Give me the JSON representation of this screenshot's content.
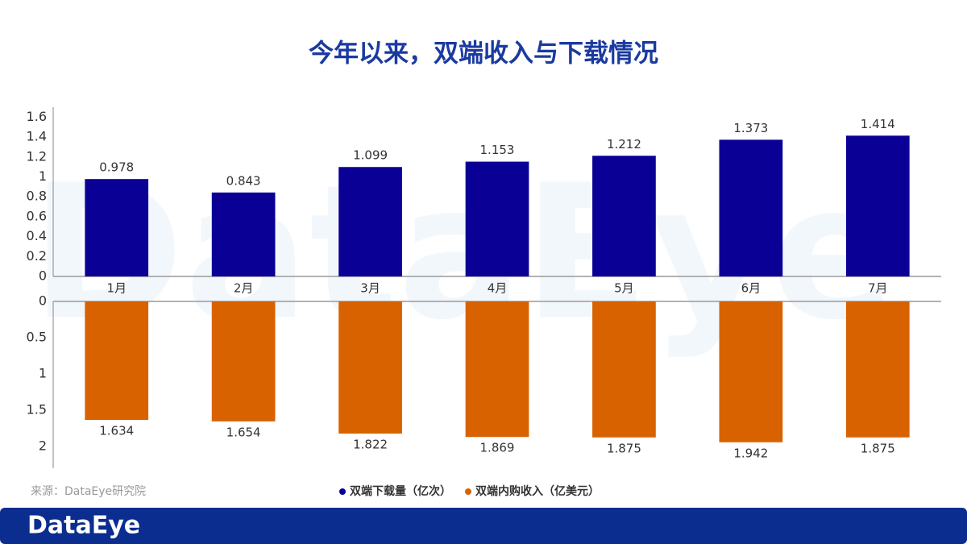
{
  "title": "今年以来，双端收入与下载情况",
  "source": "来源：DataEye研究院",
  "watermark": "DataEye",
  "brand": "DataEye",
  "chart_data": [
    {
      "type": "bar",
      "categories": [
        "1月",
        "2月",
        "3月",
        "4月",
        "5月",
        "6月",
        "7月"
      ],
      "series": [
        {
          "name": "双端下载量（亿次）",
          "color": "#0a0096",
          "values": [
            0.978,
            0.843,
            1.099,
            1.153,
            1.212,
            1.373,
            1.414
          ]
        }
      ],
      "ylim": [
        0,
        1.7
      ],
      "yticks": [
        0,
        0.2,
        0.4,
        0.6,
        0.8,
        1,
        1.2,
        1.4,
        1.6
      ],
      "grid": false,
      "inverted": false
    },
    {
      "type": "bar",
      "series": [
        {
          "name": "双端内购收入（亿美元）",
          "color": "#d96200",
          "values": [
            1.634,
            1.654,
            1.822,
            1.869,
            1.875,
            1.942,
            1.875
          ]
        }
      ],
      "ylim": [
        0,
        2.3
      ],
      "yticks": [
        0,
        0.5,
        1,
        1.5,
        2
      ],
      "grid": false,
      "inverted": true
    }
  ]
}
